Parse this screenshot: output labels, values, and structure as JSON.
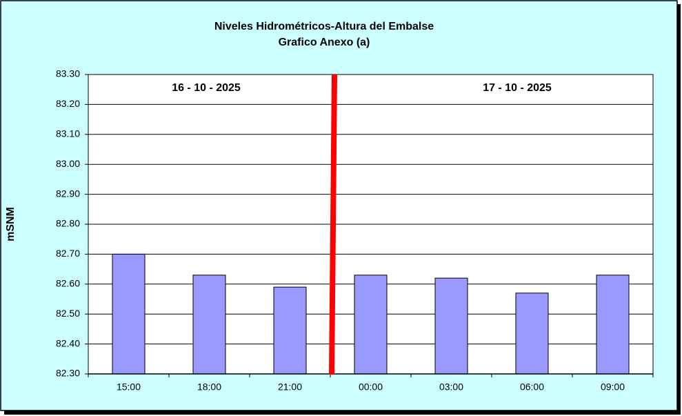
{
  "chart_data": {
    "type": "bar",
    "title": "Niveles Hidrométricos-Altura del Embalse",
    "subtitle": "Grafico Anexo (a)",
    "y_label": "mSNM",
    "annotations": [
      "16 - 10 - 2025",
      "17 - 10 - 2025"
    ],
    "categories": [
      "15:00",
      "18:00",
      "21:00",
      "00:00",
      "03:00",
      "06:00",
      "09:00"
    ],
    "values": [
      82.7,
      82.63,
      82.59,
      82.63,
      82.62,
      82.57,
      82.63
    ],
    "color": "#9999ff",
    "ylim": [
      82.3,
      83.3
    ],
    "yticks": [
      {
        "value": 82.3,
        "label": "82.30"
      },
      {
        "value": 82.4,
        "label": "82.40"
      },
      {
        "value": 82.5,
        "label": "82.50"
      },
      {
        "value": 82.6,
        "label": "82.60"
      },
      {
        "value": 82.7,
        "label": "82.70"
      },
      {
        "value": 82.8,
        "label": "82.80"
      },
      {
        "value": 82.9,
        "label": "82.90"
      },
      {
        "value": 83.0,
        "label": "83.00"
      },
      {
        "value": 83.1,
        "label": "83.10"
      },
      {
        "value": 83.2,
        "label": "83.20"
      },
      {
        "value": 83.3,
        "label": "83.30"
      }
    ],
    "grid": true
  }
}
